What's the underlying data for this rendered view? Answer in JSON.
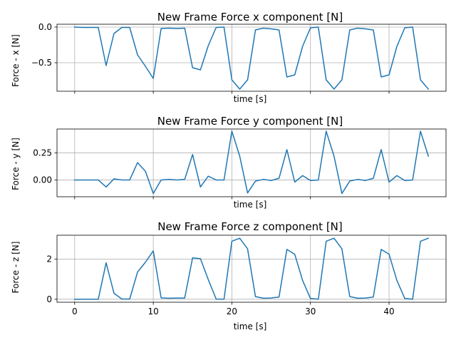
{
  "chart_data": [
    {
      "type": "line",
      "title": "New Frame Force x component [N]",
      "xlabel": "time [s]",
      "ylabel": "Force - x [N]",
      "xlim": [
        -2.25,
        47.25
      ],
      "ylim": [
        -0.9,
        0.04
      ],
      "xticks": [
        0,
        10,
        20,
        30,
        40
      ],
      "yticks": [
        0.0,
        -0.5
      ],
      "ytick_labels": [
        "0.0",
        "−0.5"
      ],
      "show_xtick_labels": false,
      "grid": true,
      "color": "#1f77b4",
      "x": [
        0,
        1,
        2,
        3,
        4,
        5,
        6,
        7,
        8,
        9,
        10,
        11,
        12,
        13,
        14,
        15,
        16,
        17,
        18,
        19,
        20,
        21,
        22,
        23,
        24,
        25,
        26,
        27,
        28,
        29,
        30,
        31,
        32,
        33,
        34,
        35,
        36,
        37,
        38,
        39,
        40,
        41,
        42,
        43,
        44,
        45
      ],
      "values": [
        0.0,
        -0.005,
        -0.005,
        -0.005,
        -0.54,
        -0.09,
        -0.005,
        -0.005,
        -0.39,
        -0.55,
        -0.72,
        -0.02,
        -0.015,
        -0.02,
        -0.015,
        -0.57,
        -0.6,
        -0.26,
        -0.005,
        0.0,
        -0.74,
        -0.87,
        -0.74,
        -0.04,
        -0.015,
        -0.025,
        -0.04,
        -0.7,
        -0.67,
        -0.27,
        -0.01,
        0.0,
        -0.74,
        -0.87,
        -0.74,
        -0.04,
        -0.015,
        -0.025,
        -0.04,
        -0.7,
        -0.67,
        -0.27,
        -0.01,
        0.0,
        -0.74,
        -0.87
      ]
    },
    {
      "type": "line",
      "title": "New Frame Force y component [N]",
      "xlabel": "time [s]",
      "ylabel": "Force - y [N]",
      "xlim": [
        -2.25,
        47.25
      ],
      "ylim": [
        -0.155,
        0.47
      ],
      "xticks": [
        0,
        10,
        20,
        30,
        40
      ],
      "yticks": [
        0.25,
        0.0
      ],
      "ytick_labels": [
        "0.25",
        "0.00"
      ],
      "show_xtick_labels": false,
      "grid": true,
      "color": "#1f77b4",
      "x": [
        0,
        1,
        2,
        3,
        4,
        5,
        6,
        7,
        8,
        9,
        10,
        11,
        12,
        13,
        14,
        15,
        16,
        17,
        18,
        19,
        20,
        21,
        22,
        23,
        24,
        25,
        26,
        27,
        28,
        29,
        30,
        31,
        32,
        33,
        34,
        35,
        36,
        37,
        38,
        39,
        40,
        41,
        42,
        43,
        44,
        45
      ],
      "values": [
        0.0,
        0.0,
        0.0,
        0.0,
        -0.065,
        0.01,
        0.0,
        0.0,
        0.16,
        0.08,
        -0.125,
        0.0,
        0.005,
        0.0,
        0.005,
        0.235,
        -0.065,
        0.035,
        0.0,
        0.0,
        0.45,
        0.22,
        -0.12,
        -0.01,
        0.005,
        -0.005,
        0.015,
        0.28,
        -0.02,
        0.04,
        -0.005,
        0.0,
        0.45,
        0.22,
        -0.125,
        -0.01,
        0.005,
        -0.005,
        0.015,
        0.28,
        -0.02,
        0.04,
        -0.005,
        0.0,
        0.45,
        0.22
      ]
    },
    {
      "type": "line",
      "title": "New Frame Force z component [N]",
      "xlabel": "time [s]",
      "ylabel": "Force - z [N]",
      "xlim": [
        -2.25,
        47.25
      ],
      "ylim": [
        -0.15,
        3.2
      ],
      "xticks": [
        0,
        10,
        20,
        30,
        40
      ],
      "xtick_labels": [
        "0",
        "10",
        "20",
        "30",
        "40"
      ],
      "yticks": [
        0,
        2
      ],
      "ytick_labels": [
        "0",
        "2"
      ],
      "show_xtick_labels": true,
      "grid": true,
      "color": "#1f77b4",
      "x": [
        0,
        1,
        2,
        3,
        4,
        5,
        6,
        7,
        8,
        9,
        10,
        11,
        12,
        13,
        14,
        15,
        16,
        17,
        18,
        19,
        20,
        21,
        22,
        23,
        24,
        25,
        26,
        27,
        28,
        29,
        30,
        31,
        32,
        33,
        34,
        35,
        36,
        37,
        38,
        39,
        40,
        41,
        42,
        43,
        44,
        45
      ],
      "values": [
        0.0,
        0.0,
        0.0,
        0.0,
        1.82,
        0.3,
        0.01,
        0.01,
        1.36,
        1.85,
        2.42,
        0.07,
        0.05,
        0.06,
        0.06,
        2.07,
        2.03,
        0.98,
        0.01,
        0.0,
        2.9,
        3.05,
        2.52,
        0.13,
        0.05,
        0.06,
        0.11,
        2.49,
        2.25,
        0.94,
        0.04,
        0.0,
        2.9,
        3.05,
        2.52,
        0.13,
        0.05,
        0.06,
        0.11,
        2.49,
        2.25,
        0.94,
        0.04,
        0.0,
        2.9,
        3.05
      ]
    }
  ]
}
